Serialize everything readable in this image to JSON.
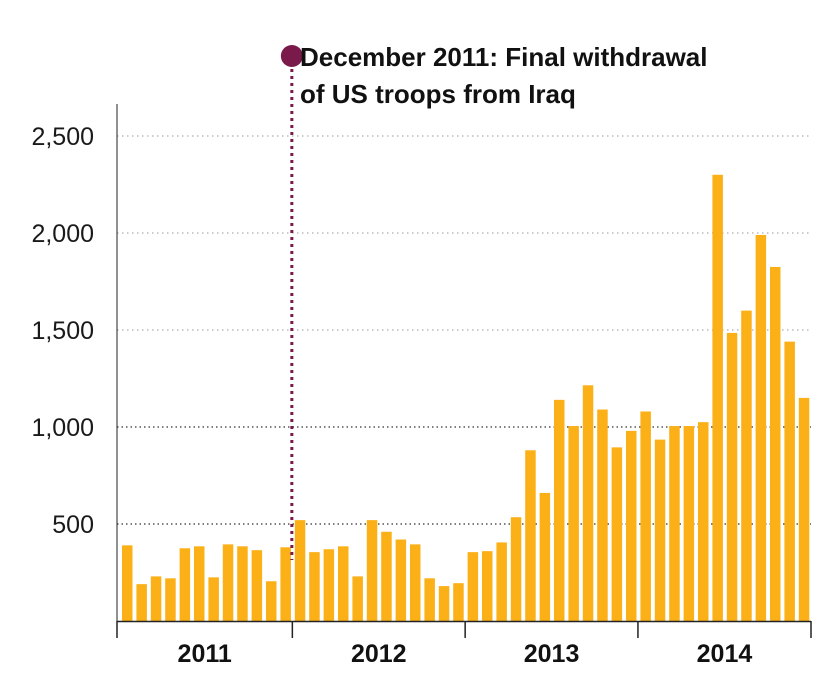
{
  "chart_data": {
    "type": "bar",
    "title": "",
    "xlabel": "",
    "ylabel": "",
    "ylim": [
      0,
      2600
    ],
    "yticks": [
      500,
      1000,
      1500,
      2000,
      2500
    ],
    "ytick_labels": [
      "500",
      "1,000",
      "1,500",
      "2,000",
      "2,500"
    ],
    "gridlines": {
      "dotted": true,
      "darker_at": [
        500,
        1000
      ]
    },
    "year_labels": [
      "2011",
      "2012",
      "2013",
      "2014"
    ],
    "months_per_year": 12,
    "series": [
      {
        "values": [
          390,
          190,
          230,
          220,
          375,
          385,
          225,
          395,
          385,
          365,
          205,
          380,
          520,
          355,
          370,
          385,
          230,
          520,
          460,
          420,
          395,
          220,
          180,
          195,
          355,
          360,
          405,
          535,
          880,
          660,
          1140,
          1005,
          1215,
          1090,
          895,
          980,
          1080,
          935,
          1005,
          1005,
          1025,
          2300,
          1485,
          1600,
          1990,
          1825,
          1440,
          1150
        ]
      }
    ],
    "annotation": {
      "line1": "December 2011: Final withdrawal",
      "line2": "of US troops from Iraq",
      "after_bar_index": 11
    }
  },
  "colors": {
    "bar": "#fbb017",
    "marker": "#7a1a4a",
    "grid": "#9a9a9a",
    "grid_dark": "#333333",
    "axis": "#222222"
  }
}
